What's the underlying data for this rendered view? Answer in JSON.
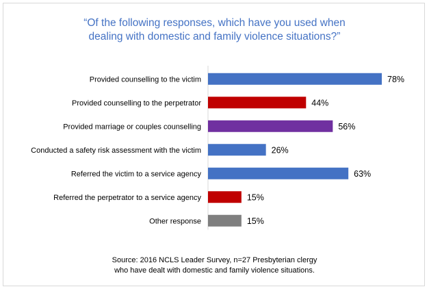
{
  "title_lines": [
    "“Of the following responses, which have you used when",
    "dealing with domestic and family violence situations?”"
  ],
  "source_lines": [
    "Source: 2016 NCLS Leader Survey, n=27 Presbyterian clergy",
    "who have dealt with domestic and family violence situations."
  ],
  "colors": {
    "blue": "#4472c4",
    "red": "#c00000",
    "purple": "#7030a0",
    "gray": "#7f7f7f"
  },
  "chart_data": {
    "type": "bar",
    "orientation": "horizontal",
    "title": "“Of the following responses, which have you used when dealing with domestic and family violence situations?”",
    "categories": [
      "Provided counselling to the victim",
      "Provided counselling to the perpetrator",
      "Provided marriage or couples counselling",
      "Conducted a safety risk assessment with the victim",
      "Referred the victim to a service agency",
      "Referred the perpetrator to a service agency",
      "Other response"
    ],
    "values": [
      78,
      44,
      56,
      26,
      63,
      15,
      15
    ],
    "value_labels": [
      "78%",
      "44%",
      "56%",
      "26%",
      "63%",
      "15%",
      "15%"
    ],
    "bar_colors": [
      "#4472c4",
      "#c00000",
      "#7030a0",
      "#4472c4",
      "#4472c4",
      "#c00000",
      "#7f7f7f"
    ],
    "unit": "%",
    "xlim": [
      0,
      100
    ],
    "grid": false,
    "legend": "none"
  }
}
